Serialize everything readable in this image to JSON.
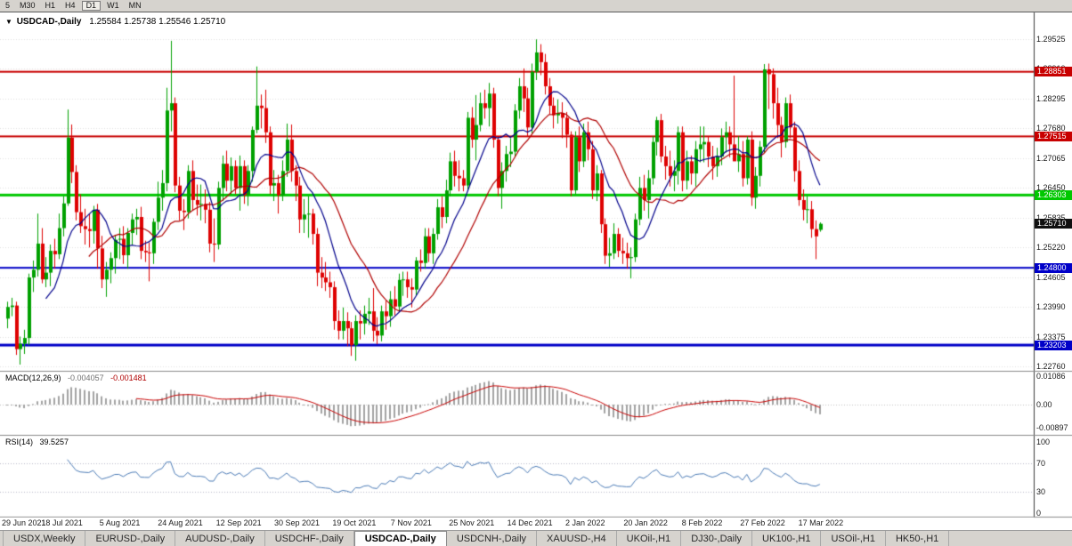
{
  "toolbar": {
    "timeframes": [
      "5",
      "M30",
      "H1",
      "H4",
      "D1",
      "W1",
      "MN"
    ],
    "active": "D1"
  },
  "icons": {
    "chart_menu": "▼"
  },
  "chart_data": {
    "type": "candlestick",
    "symbol": "USDCAD-,Daily",
    "quote_text": "1.25584 1.25738 1.25546 1.25710",
    "quote": {
      "open": 1.25584,
      "high": 1.25738,
      "low": 1.25546,
      "close": 1.2571
    },
    "candle_colors": {
      "up": "#00A000",
      "down": "#DE0202"
    },
    "price_axis": {
      "ticks": [
        "1.29525",
        "1.28910",
        "1.28295",
        "1.27680",
        "1.27065",
        "1.26450",
        "1.25835",
        "1.25220",
        "1.24605",
        "1.23990",
        "1.23375",
        "1.22760"
      ]
    },
    "levels": [
      {
        "label": "1.28851",
        "price": 1.28851,
        "color": "#C80000",
        "thickness": 2
      },
      {
        "label": "1.27515",
        "price": 1.27515,
        "color": "#C80000",
        "thickness": 2
      },
      {
        "label": "1.26303",
        "price": 1.26303,
        "color": "#00C800",
        "thickness": 3
      },
      {
        "label": "1.24800",
        "price": 1.248,
        "color": "#0000C8",
        "thickness": 2
      },
      {
        "label": "1.23203",
        "price": 1.23203,
        "color": "#0000C8",
        "thickness": 3
      }
    ],
    "current_price": {
      "label": "1.25710",
      "price": 1.2571,
      "color": "#101010"
    },
    "overlays": [
      {
        "name": "ma-fast",
        "type": "sma",
        "period": 10,
        "color": "#00008B"
      },
      {
        "name": "ma-slow",
        "type": "sma",
        "period": 20,
        "color": "#B00000"
      }
    ],
    "macd": {
      "title": "MACD(12,26,9)",
      "main_value": "-0.004057",
      "signal_value": "-0.001481",
      "params": [
        12,
        26,
        9
      ],
      "histogram_color": "#A2A2A2",
      "signal_color": "#C80000",
      "axis_ticks": [
        {
          "text": "0.01086",
          "value": 0.01086
        },
        {
          "text": "0.00",
          "value": 0
        },
        {
          "text": "-0.00897",
          "value": -0.00897
        }
      ]
    },
    "rsi": {
      "title": "RSI(14)",
      "value": "39.5257",
      "period": 14,
      "color": "#4A7AB5",
      "levels": [
        70,
        30
      ],
      "axis_ticks": [
        {
          "text": "100",
          "value": 100
        },
        {
          "text": "70",
          "value": 70
        },
        {
          "text": "30",
          "value": 30
        },
        {
          "text": "0",
          "value": 0
        }
      ]
    },
    "x_axis": {
      "dates": [
        "29 Jun 2021",
        "18 Jul 2021",
        "5 Aug 2021",
        "24 Aug 2021",
        "12 Sep 2021",
        "30 Sep 2021",
        "19 Oct 2021",
        "7 Nov 2021",
        "25 Nov 2021",
        "14 Dec 2021",
        "2 Jan 2022",
        "20 Jan 2022",
        "8 Feb 2022",
        "27 Feb 2022",
        "17 Mar 2022"
      ]
    },
    "candles": [
      [
        1.2375,
        1.241,
        1.2355,
        1.2399
      ],
      [
        1.2399,
        1.2418,
        1.238,
        1.2402
      ],
      [
        1.2402,
        1.241,
        1.23,
        1.2312
      ],
      [
        1.2312,
        1.2338,
        1.228,
        1.2323
      ],
      [
        1.2323,
        1.2352,
        1.2302,
        1.2335
      ],
      [
        1.2335,
        1.2468,
        1.232,
        1.246
      ],
      [
        1.246,
        1.2495,
        1.243,
        1.2476
      ],
      [
        1.2476,
        1.2592,
        1.2462,
        1.253
      ],
      [
        1.253,
        1.2562,
        1.2448,
        1.2456
      ],
      [
        1.2456,
        1.2502,
        1.244,
        1.247
      ],
      [
        1.247,
        1.2528,
        1.2442,
        1.2515
      ],
      [
        1.2515,
        1.254,
        1.2478,
        1.2508
      ],
      [
        1.2508,
        1.2592,
        1.2498,
        1.2562
      ],
      [
        1.2562,
        1.2628,
        1.2545,
        1.2613
      ],
      [
        1.2613,
        1.2807,
        1.2608,
        1.2749
      ],
      [
        1.2749,
        1.2776,
        1.2655,
        1.2678
      ],
      [
        1.2678,
        1.2692,
        1.2578,
        1.2595
      ],
      [
        1.2595,
        1.2632,
        1.2552,
        1.2566
      ],
      [
        1.2566,
        1.2602,
        1.2528,
        1.256
      ],
      [
        1.256,
        1.2592,
        1.2522,
        1.2556
      ],
      [
        1.2556,
        1.2608,
        1.253,
        1.26
      ],
      [
        1.26,
        1.2612,
        1.2478,
        1.252
      ],
      [
        1.252,
        1.2546,
        1.2438,
        1.2456
      ],
      [
        1.2456,
        1.2492,
        1.242,
        1.2476
      ],
      [
        1.2476,
        1.2512,
        1.2448,
        1.25
      ],
      [
        1.25,
        1.2548,
        1.2468,
        1.2538
      ],
      [
        1.2538,
        1.2562,
        1.2498,
        1.254
      ],
      [
        1.254,
        1.2566,
        1.2488,
        1.2506
      ],
      [
        1.2506,
        1.2562,
        1.2478,
        1.2552
      ],
      [
        1.2552,
        1.2592,
        1.2528,
        1.258
      ],
      [
        1.258,
        1.2602,
        1.2548,
        1.2585
      ],
      [
        1.2585,
        1.2606,
        1.2498,
        1.2515
      ],
      [
        1.2515,
        1.2536,
        1.2492,
        1.2512
      ],
      [
        1.2512,
        1.2532,
        1.2452,
        1.251
      ],
      [
        1.251,
        1.2582,
        1.2488,
        1.2575
      ],
      [
        1.2575,
        1.2658,
        1.2558,
        1.2625
      ],
      [
        1.2625,
        1.2682,
        1.2598,
        1.2655
      ],
      [
        1.2655,
        1.2852,
        1.2638,
        1.2805
      ],
      [
        1.2805,
        1.2949,
        1.2762,
        1.282
      ],
      [
        1.282,
        1.2832,
        1.2636,
        1.265
      ],
      [
        1.265,
        1.2668,
        1.2578,
        1.2598
      ],
      [
        1.2598,
        1.2622,
        1.2558,
        1.2595
      ],
      [
        1.2595,
        1.2692,
        1.2582,
        1.268
      ],
      [
        1.268,
        1.2702,
        1.2598,
        1.262
      ],
      [
        1.262,
        1.2652,
        1.2588,
        1.261
      ],
      [
        1.261,
        1.2652,
        1.2578,
        1.2612
      ],
      [
        1.2612,
        1.2642,
        1.2572,
        1.26
      ],
      [
        1.26,
        1.2616,
        1.2512,
        1.253
      ],
      [
        1.253,
        1.2582,
        1.2492,
        1.2528
      ],
      [
        1.2528,
        1.2658,
        1.2518,
        1.2645
      ],
      [
        1.2645,
        1.2712,
        1.2618,
        1.2695
      ],
      [
        1.2695,
        1.2722,
        1.2638,
        1.266
      ],
      [
        1.266,
        1.2708,
        1.2632,
        1.269
      ],
      [
        1.269,
        1.2702,
        1.2632,
        1.2645
      ],
      [
        1.2645,
        1.2712,
        1.2598,
        1.269
      ],
      [
        1.269,
        1.2702,
        1.2612,
        1.263
      ],
      [
        1.263,
        1.2692,
        1.2608,
        1.268
      ],
      [
        1.268,
        1.2772,
        1.2658,
        1.2765
      ],
      [
        1.2765,
        1.2896,
        1.2758,
        1.2815
      ],
      [
        1.2815,
        1.2838,
        1.2768,
        1.281
      ],
      [
        1.281,
        1.2848,
        1.2738,
        1.276
      ],
      [
        1.276,
        1.2772,
        1.2632,
        1.265
      ],
      [
        1.265,
        1.2682,
        1.2618,
        1.2655
      ],
      [
        1.2655,
        1.2672,
        1.2592,
        1.263
      ],
      [
        1.263,
        1.2702,
        1.2618,
        1.268
      ],
      [
        1.268,
        1.2778,
        1.2668,
        1.2745
      ],
      [
        1.2745,
        1.2776,
        1.2658,
        1.268
      ],
      [
        1.268,
        1.2692,
        1.2618,
        1.265
      ],
      [
        1.265,
        1.2668,
        1.2552,
        1.258
      ],
      [
        1.258,
        1.2622,
        1.2552,
        1.259
      ],
      [
        1.259,
        1.2628,
        1.2542,
        1.2592
      ],
      [
        1.2592,
        1.2602,
        1.2528,
        1.255
      ],
      [
        1.255,
        1.2562,
        1.2442,
        1.247
      ],
      [
        1.247,
        1.2502,
        1.2438,
        1.246
      ],
      [
        1.246,
        1.2492,
        1.2432,
        1.245
      ],
      [
        1.245,
        1.2472,
        1.2418,
        1.244
      ],
      [
        1.244,
        1.2452,
        1.2352,
        1.237
      ],
      [
        1.237,
        1.2392,
        1.2332,
        1.235
      ],
      [
        1.235,
        1.2398,
        1.2332,
        1.237
      ],
      [
        1.237,
        1.2388,
        1.2318,
        1.2355
      ],
      [
        1.2355,
        1.2368,
        1.2298,
        1.232
      ],
      [
        1.232,
        1.2382,
        1.2288,
        1.237
      ],
      [
        1.237,
        1.2392,
        1.2332,
        1.2365
      ],
      [
        1.2365,
        1.2402,
        1.2342,
        1.2385
      ],
      [
        1.2385,
        1.2418,
        1.2362,
        1.239
      ],
      [
        1.239,
        1.2438,
        1.2328,
        1.235
      ],
      [
        1.235,
        1.2378,
        1.2322,
        1.234
      ],
      [
        1.234,
        1.2402,
        1.2328,
        1.239
      ],
      [
        1.239,
        1.2412,
        1.2352,
        1.238
      ],
      [
        1.238,
        1.2432,
        1.2358,
        1.2415
      ],
      [
        1.2415,
        1.2442,
        1.2382,
        1.24
      ],
      [
        1.24,
        1.2468,
        1.2388,
        1.2455
      ],
      [
        1.2455,
        1.2472,
        1.2422,
        1.2456
      ],
      [
        1.2456,
        1.2472,
        1.2418,
        1.244
      ],
      [
        1.244,
        1.2458,
        1.2398,
        1.2435
      ],
      [
        1.2435,
        1.2502,
        1.2422,
        1.2495
      ],
      [
        1.2495,
        1.2518,
        1.2472,
        1.249
      ],
      [
        1.249,
        1.2562,
        1.2478,
        1.2545
      ],
      [
        1.2545,
        1.2562,
        1.2492,
        1.251
      ],
      [
        1.251,
        1.2562,
        1.2488,
        1.255
      ],
      [
        1.255,
        1.2622,
        1.2538,
        1.2605
      ],
      [
        1.2605,
        1.2628,
        1.2562,
        1.2585
      ],
      [
        1.2585,
        1.2662,
        1.2572,
        1.264
      ],
      [
        1.264,
        1.2718,
        1.2628,
        1.27
      ],
      [
        1.27,
        1.2722,
        1.2648,
        1.267
      ],
      [
        1.267,
        1.2702,
        1.2638,
        1.2665
      ],
      [
        1.2665,
        1.2682,
        1.2638,
        1.265
      ],
      [
        1.265,
        1.2802,
        1.2642,
        1.279
      ],
      [
        1.279,
        1.2812,
        1.2728,
        1.2745
      ],
      [
        1.2745,
        1.2837,
        1.2702,
        1.2775
      ],
      [
        1.2775,
        1.2842,
        1.2762,
        1.282
      ],
      [
        1.282,
        1.2848,
        1.2788,
        1.281
      ],
      [
        1.281,
        1.2862,
        1.2772,
        1.284
      ],
      [
        1.284,
        1.2852,
        1.2728,
        1.2745
      ],
      [
        1.2745,
        1.2752,
        1.2628,
        1.2645
      ],
      [
        1.2645,
        1.2698,
        1.2602,
        1.268
      ],
      [
        1.268,
        1.2732,
        1.2658,
        1.2715
      ],
      [
        1.2715,
        1.2748,
        1.2688,
        1.272
      ],
      [
        1.272,
        1.2818,
        1.2708,
        1.2805
      ],
      [
        1.2805,
        1.2872,
        1.2788,
        1.2855
      ],
      [
        1.2855,
        1.2892,
        1.2802,
        1.283
      ],
      [
        1.283,
        1.2852,
        1.2752,
        1.277
      ],
      [
        1.277,
        1.2902,
        1.2758,
        1.2885
      ],
      [
        1.2885,
        1.2952,
        1.2868,
        1.2925
      ],
      [
        1.2925,
        1.2942,
        1.2878,
        1.2905
      ],
      [
        1.2905,
        1.2922,
        1.2838,
        1.2855
      ],
      [
        1.2855,
        1.2872,
        1.2798,
        1.2815
      ],
      [
        1.2815,
        1.2832,
        1.2768,
        1.2795
      ],
      [
        1.2795,
        1.2828,
        1.2778,
        1.28
      ],
      [
        1.28,
        1.2822,
        1.2748,
        1.279
      ],
      [
        1.279,
        1.2802,
        1.2728,
        1.2755
      ],
      [
        1.2755,
        1.2762,
        1.2628,
        1.264
      ],
      [
        1.264,
        1.2762,
        1.2632,
        1.275
      ],
      [
        1.275,
        1.2772,
        1.2678,
        1.27
      ],
      [
        1.27,
        1.2778,
        1.2688,
        1.276
      ],
      [
        1.276,
        1.2782,
        1.2702,
        1.2725
      ],
      [
        1.2725,
        1.2742,
        1.2622,
        1.264
      ],
      [
        1.264,
        1.2692,
        1.2618,
        1.2675
      ],
      [
        1.2675,
        1.2682,
        1.2552,
        1.257
      ],
      [
        1.257,
        1.2582,
        1.2488,
        1.2505
      ],
      [
        1.2505,
        1.2542,
        1.2482,
        1.251
      ],
      [
        1.251,
        1.2572,
        1.2498,
        1.255
      ],
      [
        1.255,
        1.2562,
        1.2502,
        1.2515
      ],
      [
        1.2515,
        1.2542,
        1.2488,
        1.251
      ],
      [
        1.251,
        1.2532,
        1.2478,
        1.25
      ],
      [
        1.25,
        1.2522,
        1.2458,
        1.2502
      ],
      [
        1.2502,
        1.2592,
        1.2492,
        1.258
      ],
      [
        1.258,
        1.2668,
        1.2568,
        1.2645
      ],
      [
        1.2645,
        1.2672,
        1.2598,
        1.262
      ],
      [
        1.262,
        1.2682,
        1.2582,
        1.2665
      ],
      [
        1.2665,
        1.2752,
        1.2652,
        1.274
      ],
      [
        1.274,
        1.2792,
        1.2712,
        1.2785
      ],
      [
        1.2785,
        1.2798,
        1.2698,
        1.271
      ],
      [
        1.271,
        1.2732,
        1.2662,
        1.269
      ],
      [
        1.269,
        1.2722,
        1.2648,
        1.267
      ],
      [
        1.267,
        1.2702,
        1.2638,
        1.268
      ],
      [
        1.268,
        1.2772,
        1.2652,
        1.276
      ],
      [
        1.276,
        1.2772,
        1.2638,
        1.266
      ],
      [
        1.266,
        1.2722,
        1.2642,
        1.27
      ],
      [
        1.27,
        1.2712,
        1.2652,
        1.2675
      ],
      [
        1.2675,
        1.2742,
        1.2648,
        1.2725
      ],
      [
        1.2725,
        1.2772,
        1.2698,
        1.2735
      ],
      [
        1.2735,
        1.2772,
        1.2698,
        1.274
      ],
      [
        1.274,
        1.2752,
        1.2688,
        1.271
      ],
      [
        1.271,
        1.2732,
        1.2662,
        1.269
      ],
      [
        1.269,
        1.2728,
        1.2668,
        1.271
      ],
      [
        1.271,
        1.2768,
        1.2692,
        1.275
      ],
      [
        1.275,
        1.2782,
        1.2718,
        1.276
      ],
      [
        1.276,
        1.2772,
        1.2708,
        1.2735
      ],
      [
        1.2735,
        1.2877,
        1.2722,
        1.27
      ],
      [
        1.27,
        1.2752,
        1.2678,
        1.2715
      ],
      [
        1.2715,
        1.2742,
        1.2648,
        1.2665
      ],
      [
        1.2665,
        1.2752,
        1.2652,
        1.2745
      ],
      [
        1.2745,
        1.2762,
        1.2608,
        1.2625
      ],
      [
        1.2625,
        1.2688,
        1.2602,
        1.267
      ],
      [
        1.267,
        1.2742,
        1.2648,
        1.273
      ],
      [
        1.273,
        1.2901,
        1.2718,
        1.289
      ],
      [
        1.289,
        1.2902,
        1.2808,
        1.288
      ],
      [
        1.288,
        1.2892,
        1.2788,
        1.282
      ],
      [
        1.282,
        1.2852,
        1.2748,
        1.2775
      ],
      [
        1.2775,
        1.2792,
        1.2708,
        1.274
      ],
      [
        1.274,
        1.2832,
        1.2728,
        1.282
      ],
      [
        1.282,
        1.2838,
        1.2748,
        1.277
      ],
      [
        1.277,
        1.2782,
        1.2658,
        1.268
      ],
      [
        1.268,
        1.2702,
        1.2608,
        1.262
      ],
      [
        1.262,
        1.2642,
        1.2578,
        1.26
      ],
      [
        1.26,
        1.2628,
        1.2572,
        1.2601
      ],
      [
        1.2601,
        1.2618,
        1.2542,
        1.256
      ],
      [
        1.256,
        1.2578,
        1.2498,
        1.2545
      ],
      [
        1.25584,
        1.25738,
        1.25546,
        1.2571
      ]
    ]
  },
  "tabs": {
    "items": [
      "USDX,Weekly",
      "EURUSD-,Daily",
      "AUDUSD-,Daily",
      "USDCHF-,Daily",
      "USDCAD-,Daily",
      "USDCNH-,Daily",
      "XAUUSD-,H4",
      "UKOil-,H1",
      "DJ30-,Daily",
      "UK100-,H1",
      "USOil-,H1",
      "HK50-,H1"
    ],
    "active_index": 4
  }
}
